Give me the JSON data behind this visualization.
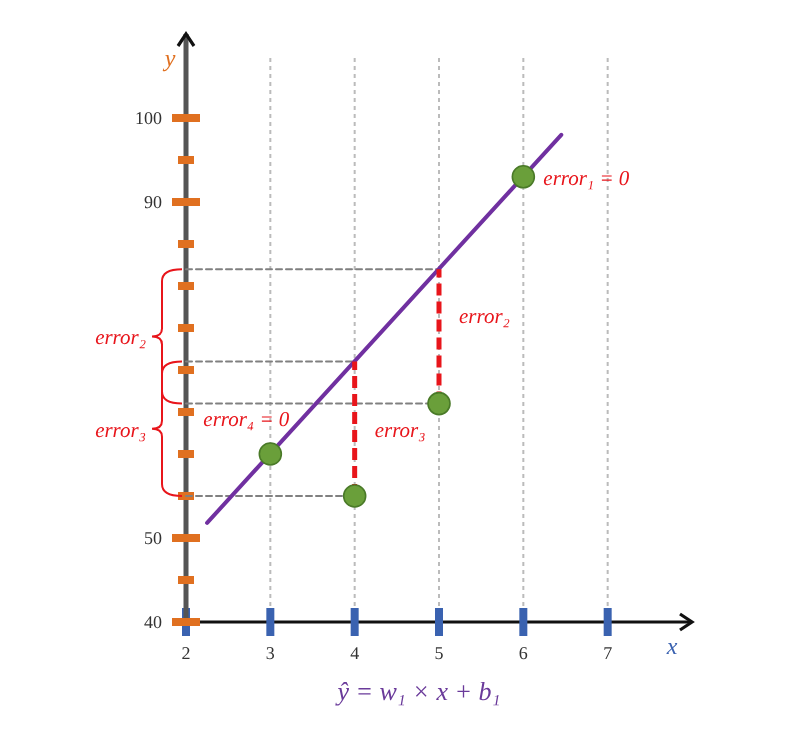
{
  "chart_data": {
    "type": "scatter",
    "xlabel": "x",
    "ylabel": "y",
    "xlim": [
      2,
      8
    ],
    "ylim": [
      40,
      110
    ],
    "xticks": [
      2,
      3,
      4,
      5,
      6,
      7
    ],
    "yticks": [
      40,
      {
        "value": 45,
        "label": null
      },
      50,
      {
        "value": 55,
        "label": null
      },
      {
        "value": 60,
        "label": null
      },
      {
        "value": 65,
        "label": null
      },
      {
        "value": 70,
        "label": null
      },
      {
        "value": 75,
        "label": null
      },
      {
        "value": 80,
        "label": null
      },
      {
        "value": 85,
        "label": null
      },
      90,
      {
        "value": 95,
        "label": null
      },
      100
    ],
    "grid": "x",
    "series": [
      {
        "type": "line",
        "line_style": "dashed",
        "color": "#808080",
        "x": [
          2,
          5
        ],
        "values": [
          82,
          82
        ]
      },
      {
        "type": "line",
        "line_style": "dashed",
        "color": "#808080",
        "x": [
          2,
          4
        ],
        "values": [
          71,
          71
        ]
      },
      {
        "type": "line",
        "line_style": "dashed",
        "color": "#808080",
        "x": [
          2,
          5
        ],
        "values": [
          66,
          66
        ]
      },
      {
        "type": "line",
        "line_style": "dashed",
        "color": "#808080",
        "x": [
          2,
          4
        ],
        "values": [
          55,
          55
        ]
      },
      {
        "type": "line",
        "line_style": "solid",
        "color": "#7030a0",
        "x": [
          2.25,
          6.45
        ],
        "values": [
          51.8,
          98
        ]
      },
      {
        "type": "line",
        "line_style": "dashed",
        "color": "#e8151b",
        "x": [
          4,
          4
        ],
        "values": [
          55,
          71
        ]
      },
      {
        "type": "line",
        "line_style": "dashed",
        "color": "#e8151b",
        "x": [
          5,
          5
        ],
        "values": [
          66,
          82
        ]
      },
      {
        "marker": "circle",
        "color": "#6a9f3a",
        "x": [
          3,
          4,
          5,
          6
        ],
        "values": [
          60,
          55,
          66,
          93
        ]
      }
    ],
    "annotations": [
      {
        "text": "error₁ = 0",
        "x": 6,
        "y": 93
      },
      {
        "text": "error₂",
        "x": 5,
        "y": 76.5
      },
      {
        "text": "error₃",
        "x": 4,
        "y": 63
      },
      {
        "text": "error₄ = 0",
        "x": 3,
        "y": 60
      },
      "error₃",
      "error₂",
      "ŷ = w₁ × x + b₁"
    ]
  }
}
